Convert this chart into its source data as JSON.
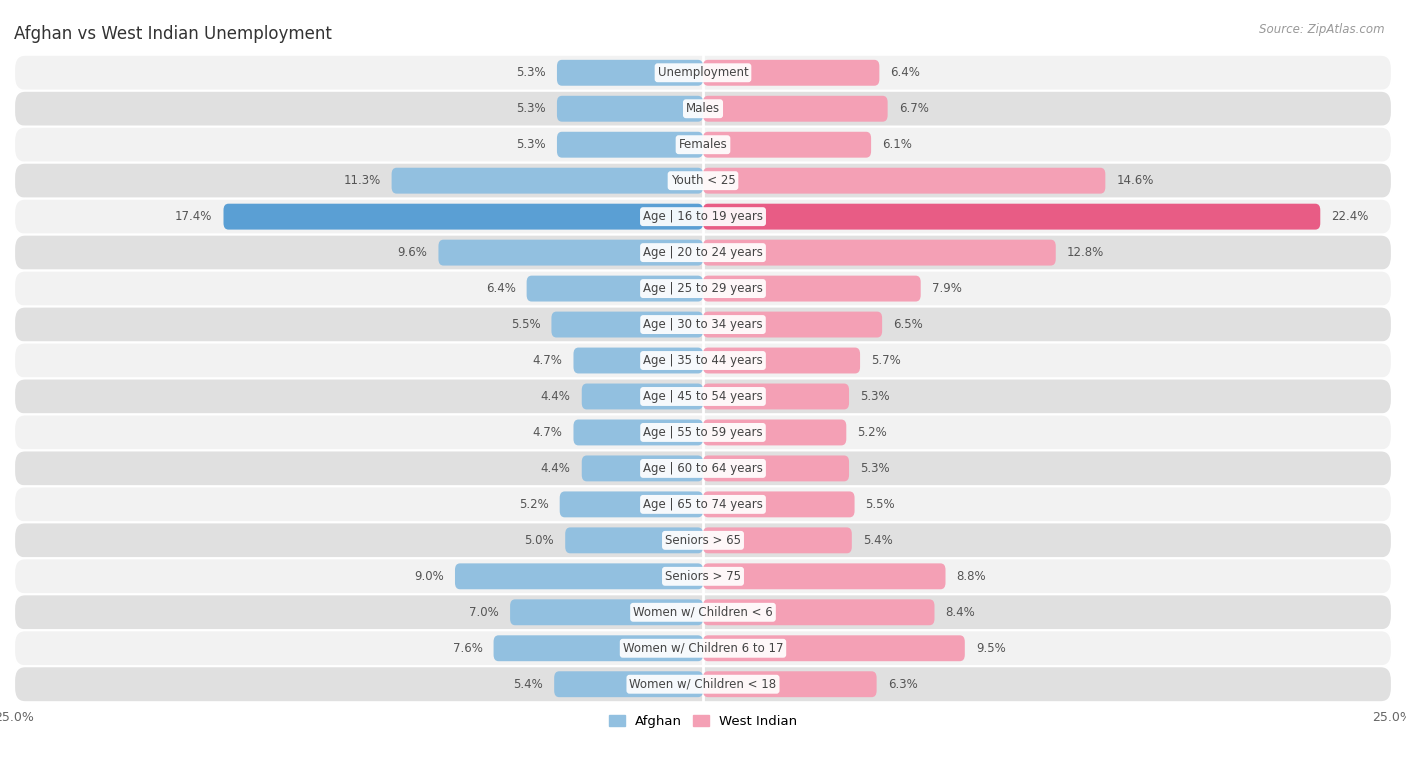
{
  "title": "Afghan vs West Indian Unemployment",
  "source": "Source: ZipAtlas.com",
  "categories": [
    "Unemployment",
    "Males",
    "Females",
    "Youth < 25",
    "Age | 16 to 19 years",
    "Age | 20 to 24 years",
    "Age | 25 to 29 years",
    "Age | 30 to 34 years",
    "Age | 35 to 44 years",
    "Age | 45 to 54 years",
    "Age | 55 to 59 years",
    "Age | 60 to 64 years",
    "Age | 65 to 74 years",
    "Seniors > 65",
    "Seniors > 75",
    "Women w/ Children < 6",
    "Women w/ Children 6 to 17",
    "Women w/ Children < 18"
  ],
  "afghan_values": [
    5.3,
    5.3,
    5.3,
    11.3,
    17.4,
    9.6,
    6.4,
    5.5,
    4.7,
    4.4,
    4.7,
    4.4,
    5.2,
    5.0,
    9.0,
    7.0,
    7.6,
    5.4
  ],
  "west_indian_values": [
    6.4,
    6.7,
    6.1,
    14.6,
    22.4,
    12.8,
    7.9,
    6.5,
    5.7,
    5.3,
    5.2,
    5.3,
    5.5,
    5.4,
    8.8,
    8.4,
    9.5,
    6.3
  ],
  "afghan_color": "#92c0e0",
  "west_indian_color": "#f4a0b5",
  "afghan_highlight_color": "#5a9fd4",
  "west_indian_highlight_color": "#e85c85",
  "row_color_light": "#f2f2f2",
  "row_color_dark": "#e0e0e0",
  "axis_max": 25.0,
  "bar_height": 0.72,
  "legend_labels": [
    "Afghan",
    "West Indian"
  ],
  "label_fontsize": 8.5,
  "category_fontsize": 8.5,
  "title_fontsize": 12,
  "source_fontsize": 8.5
}
